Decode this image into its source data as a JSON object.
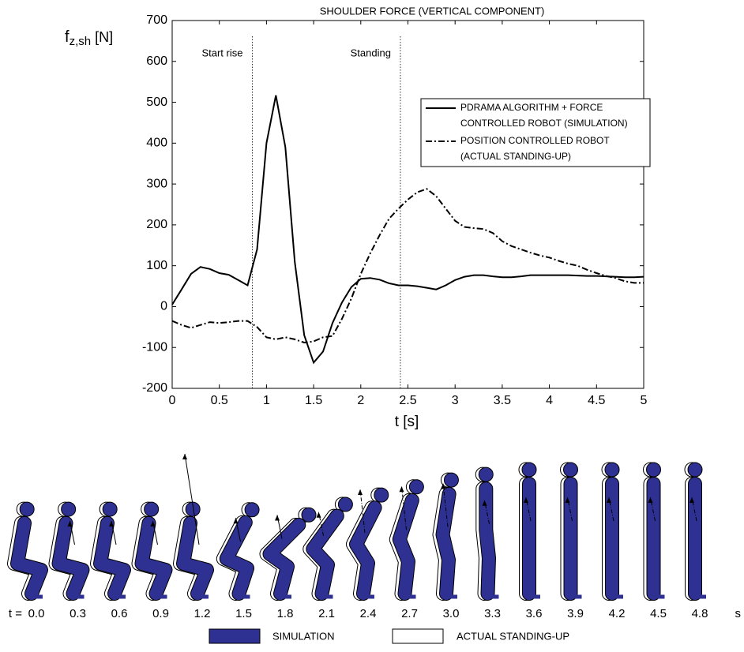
{
  "chart_data": {
    "type": "line",
    "title": "SHOULDER FORCE (VERTICAL COMPONENT)",
    "y_label_main": "f",
    "y_label_sub": "z,sh",
    "y_label_unit": "[N]",
    "x_label": "t [s]",
    "xlim": [
      0,
      5
    ],
    "xticks": [
      0,
      0.5,
      1,
      1.5,
      2,
      2.5,
      3,
      3.5,
      4,
      4.5,
      5
    ],
    "ylim": [
      -200,
      700
    ],
    "yticks": [
      -200,
      -100,
      0,
      100,
      200,
      300,
      400,
      500,
      600,
      700
    ],
    "grid": false,
    "legend_position": "upper right",
    "annotations": [
      {
        "text": "Start rise",
        "x": 0.85
      },
      {
        "text": "Standing",
        "x": 2.42
      }
    ],
    "x": [
      0,
      0.1,
      0.2,
      0.3,
      0.4,
      0.5,
      0.6,
      0.7,
      0.8,
      0.9,
      1,
      1.1,
      1.2,
      1.3,
      1.4,
      1.5,
      1.6,
      1.7,
      1.8,
      1.9,
      2,
      2.1,
      2.2,
      2.3,
      2.4,
      2.5,
      2.6,
      2.7,
      2.8,
      2.9,
      3,
      3.1,
      3.2,
      3.3,
      3.4,
      3.5,
      3.6,
      3.7,
      3.8,
      3.9,
      4,
      4.1,
      4.2,
      4.3,
      4.4,
      4.5,
      4.6,
      4.7,
      4.8,
      4.9,
      5
    ],
    "series": [
      {
        "name": "PDRAMA  ALGORITHM + FORCE\nCONTROLLED ROBOT (SIMULATION)",
        "color": "#000000",
        "dash": "solid",
        "values": [
          5,
          42,
          80,
          97,
          92,
          82,
          78,
          65,
          52,
          140,
          400,
          517,
          390,
          110,
          -70,
          -137,
          -110,
          -40,
          10,
          48,
          68,
          70,
          66,
          57,
          52,
          52,
          50,
          46,
          42,
          52,
          65,
          73,
          77,
          77,
          74,
          72,
          72,
          74,
          77,
          77,
          77,
          77,
          77,
          76,
          75,
          75,
          74,
          73,
          72,
          72,
          73
        ]
      },
      {
        "name": "POSITION CONTROLLED ROBOT\n(ACTUAL STANDING-UP)",
        "color": "#000000",
        "dash": "dashdot",
        "values": [
          -35,
          -45,
          -52,
          -45,
          -38,
          -40,
          -38,
          -35,
          -35,
          -50,
          -75,
          -80,
          -75,
          -80,
          -88,
          -85,
          -75,
          -72,
          -30,
          20,
          80,
          130,
          175,
          215,
          240,
          262,
          280,
          288,
          270,
          240,
          210,
          195,
          192,
          190,
          180,
          160,
          148,
          140,
          132,
          125,
          120,
          112,
          105,
          100,
          90,
          82,
          75,
          70,
          62,
          58,
          58
        ]
      }
    ]
  },
  "figure_strip": {
    "prefix": "t =",
    "times": [
      "0.0",
      "0.3",
      "0.6",
      "0.9",
      "1.2",
      "1.5",
      "1.8",
      "2.1",
      "2.4",
      "2.7",
      "3.0",
      "3.3",
      "3.6",
      "3.9",
      "4.2",
      "4.5",
      "4.8"
    ],
    "unit": "s",
    "legend": [
      "SIMULATION",
      "ACTUAL STANDING-UP"
    ],
    "sim_color": "#2e3192"
  }
}
